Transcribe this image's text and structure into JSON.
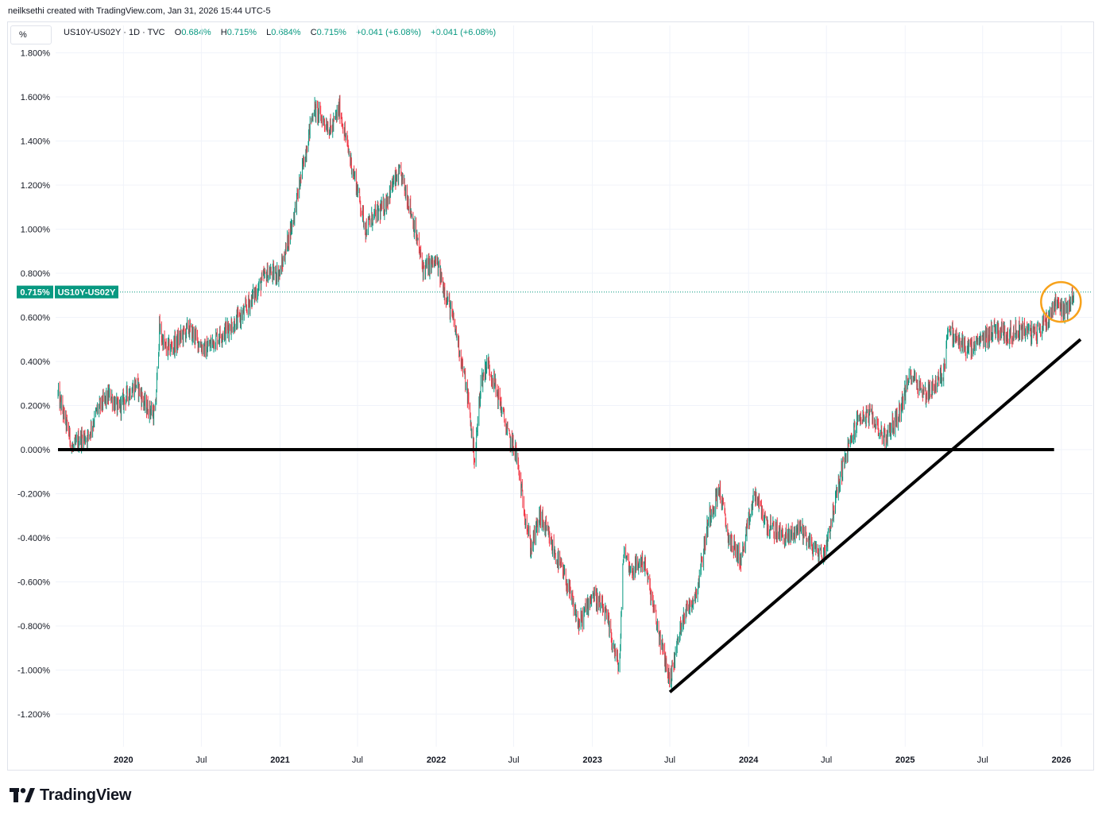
{
  "credit": "neilksethi created with TradingView.com, Jan 31, 2026 15:44 UTC-5",
  "unit_label": "%",
  "legend": {
    "symbol": "US10Y-US02Y",
    "interval": "1D",
    "source": "TVC",
    "o_key": "O",
    "o_val": "0.684%",
    "h_key": "H",
    "h_val": "0.715%",
    "l_key": "L",
    "l_val": "0.684%",
    "c_key": "C",
    "c_val": "0.715%",
    "change": "+0.041 (+6.08%)",
    "change2": "+0.041 (+6.08%)"
  },
  "brand": "TradingView",
  "colors": {
    "up": "#089981",
    "down": "#f23645",
    "annotation_line": "#000000",
    "circle": "#f7a21b",
    "grid": "#f0f3fa",
    "axis_text": "#131722"
  },
  "chart_data": {
    "type": "candlestick",
    "title": "",
    "xlabel": "",
    "ylabel": "%",
    "ylim": [
      -1.3,
      1.85
    ],
    "y_ticks": [
      "1.800%",
      "1.600%",
      "1.400%",
      "1.200%",
      "1.000%",
      "0.800%",
      "0.600%",
      "0.400%",
      "0.200%",
      "0.000%",
      "-0.200%",
      "-0.400%",
      "-0.600%",
      "-0.800%",
      "-1.000%",
      "-1.200%"
    ],
    "y_tick_values": [
      1.8,
      1.6,
      1.4,
      1.2,
      1.0,
      0.8,
      0.6,
      0.4,
      0.2,
      0.0,
      -0.2,
      -0.4,
      -0.6,
      -0.8,
      -1.0,
      -1.2
    ],
    "x_ticks": [
      {
        "label": "2020",
        "date": "2020-01-01",
        "bold": true
      },
      {
        "label": "Jul",
        "date": "2020-07-01",
        "bold": false
      },
      {
        "label": "2021",
        "date": "2021-01-01",
        "bold": true
      },
      {
        "label": "Jul",
        "date": "2021-07-01",
        "bold": false
      },
      {
        "label": "2022",
        "date": "2022-01-01",
        "bold": true
      },
      {
        "label": "Jul",
        "date": "2022-07-01",
        "bold": false
      },
      {
        "label": "2023",
        "date": "2023-01-01",
        "bold": true
      },
      {
        "label": "Jul",
        "date": "2023-07-01",
        "bold": false
      },
      {
        "label": "2024",
        "date": "2024-01-01",
        "bold": true
      },
      {
        "label": "Jul",
        "date": "2024-07-01",
        "bold": false
      },
      {
        "label": "2025",
        "date": "2025-01-01",
        "bold": true
      },
      {
        "label": "Jul",
        "date": "2025-07-01",
        "bold": false
      },
      {
        "label": "2026",
        "date": "2026-01-01",
        "bold": true
      }
    ],
    "series_name": "US10Y-US02Y",
    "last_value": 0.715,
    "last_value_label": "0.715%",
    "path": [
      [
        "2019-08-01",
        0.25
      ],
      [
        "2019-08-20",
        0.12
      ],
      [
        "2019-09-05",
        0.0
      ],
      [
        "2019-09-20",
        0.05
      ],
      [
        "2019-10-10",
        0.06
      ],
      [
        "2019-11-01",
        0.18
      ],
      [
        "2019-12-01",
        0.25
      ],
      [
        "2019-12-20",
        0.18
      ],
      [
        "2020-01-10",
        0.25
      ],
      [
        "2020-02-01",
        0.3
      ],
      [
        "2020-02-20",
        0.2
      ],
      [
        "2020-03-05",
        0.18
      ],
      [
        "2020-03-15",
        0.15
      ],
      [
        "2020-03-25",
        0.55
      ],
      [
        "2020-04-01",
        0.5
      ],
      [
        "2020-04-10",
        0.45
      ],
      [
        "2020-05-01",
        0.48
      ],
      [
        "2020-06-01",
        0.55
      ],
      [
        "2020-06-20",
        0.5
      ],
      [
        "2020-07-10",
        0.45
      ],
      [
        "2020-08-01",
        0.5
      ],
      [
        "2020-09-01",
        0.55
      ],
      [
        "2020-10-01",
        0.6
      ],
      [
        "2020-11-01",
        0.7
      ],
      [
        "2020-12-01",
        0.8
      ],
      [
        "2021-01-01",
        0.8
      ],
      [
        "2021-02-01",
        1.05
      ],
      [
        "2021-02-25",
        1.3
      ],
      [
        "2021-03-20",
        1.55
      ],
      [
        "2021-04-10",
        1.5
      ],
      [
        "2021-05-01",
        1.45
      ],
      [
        "2021-05-20",
        1.55
      ],
      [
        "2021-06-10",
        1.35
      ],
      [
        "2021-07-01",
        1.18
      ],
      [
        "2021-07-20",
        1.0
      ],
      [
        "2021-08-05",
        1.05
      ],
      [
        "2021-09-01",
        1.1
      ],
      [
        "2021-09-20",
        1.2
      ],
      [
        "2021-10-10",
        1.25
      ],
      [
        "2021-11-01",
        1.1
      ],
      [
        "2021-12-01",
        0.82
      ],
      [
        "2022-01-01",
        0.85
      ],
      [
        "2022-02-01",
        0.65
      ],
      [
        "2022-02-20",
        0.5
      ],
      [
        "2022-03-15",
        0.25
      ],
      [
        "2022-04-01",
        -0.05
      ],
      [
        "2022-04-15",
        0.3
      ],
      [
        "2022-05-01",
        0.4
      ],
      [
        "2022-06-01",
        0.2
      ],
      [
        "2022-06-20",
        0.05
      ],
      [
        "2022-07-05",
        0.0
      ],
      [
        "2022-07-20",
        -0.2
      ],
      [
        "2022-08-10",
        -0.45
      ],
      [
        "2022-09-01",
        -0.3
      ],
      [
        "2022-10-01",
        -0.45
      ],
      [
        "2022-11-01",
        -0.6
      ],
      [
        "2022-12-01",
        -0.8
      ],
      [
        "2023-01-01",
        -0.65
      ],
      [
        "2023-02-01",
        -0.75
      ],
      [
        "2023-03-05",
        -1.0
      ],
      [
        "2023-03-15",
        -0.45
      ],
      [
        "2023-04-01",
        -0.55
      ],
      [
        "2023-05-01",
        -0.5
      ],
      [
        "2023-06-01",
        -0.8
      ],
      [
        "2023-07-01",
        -1.05
      ],
      [
        "2023-08-01",
        -0.75
      ],
      [
        "2023-09-01",
        -0.65
      ],
      [
        "2023-10-01",
        -0.3
      ],
      [
        "2023-10-25",
        -0.18
      ],
      [
        "2023-11-15",
        -0.4
      ],
      [
        "2023-12-15",
        -0.5
      ],
      [
        "2024-01-15",
        -0.2
      ],
      [
        "2024-02-15",
        -0.35
      ],
      [
        "2024-04-01",
        -0.4
      ],
      [
        "2024-05-01",
        -0.35
      ],
      [
        "2024-06-01",
        -0.45
      ],
      [
        "2024-06-25",
        -0.48
      ],
      [
        "2024-07-20",
        -0.25
      ],
      [
        "2024-08-05",
        -0.1
      ],
      [
        "2024-08-20",
        0.0
      ],
      [
        "2024-09-15",
        0.15
      ],
      [
        "2024-10-15",
        0.15
      ],
      [
        "2024-11-15",
        0.05
      ],
      [
        "2024-12-15",
        0.15
      ],
      [
        "2025-01-15",
        0.35
      ],
      [
        "2025-02-15",
        0.25
      ],
      [
        "2025-03-15",
        0.3
      ],
      [
        "2025-04-01",
        0.35
      ],
      [
        "2025-04-10",
        0.55
      ],
      [
        "2025-05-01",
        0.5
      ],
      [
        "2025-06-01",
        0.45
      ],
      [
        "2025-07-01",
        0.5
      ],
      [
        "2025-08-01",
        0.55
      ],
      [
        "2025-09-01",
        0.52
      ],
      [
        "2025-10-01",
        0.55
      ],
      [
        "2025-11-01",
        0.52
      ],
      [
        "2025-12-01",
        0.6
      ],
      [
        "2025-12-20",
        0.68
      ],
      [
        "2026-01-10",
        0.62
      ],
      [
        "2026-01-31",
        0.715
      ]
    ],
    "annotations": [
      {
        "type": "horizontal-line",
        "y": 0.0,
        "from": "2019-08-01",
        "to": "2025-12-15"
      },
      {
        "type": "trend-line",
        "from": [
          "2023-07-01",
          -1.1
        ],
        "to": [
          "2026-01-31",
          0.5
        ]
      },
      {
        "type": "circle",
        "center": [
          "2025-12-31",
          0.67
        ]
      }
    ],
    "grid": true,
    "legend_position": "top-left"
  }
}
